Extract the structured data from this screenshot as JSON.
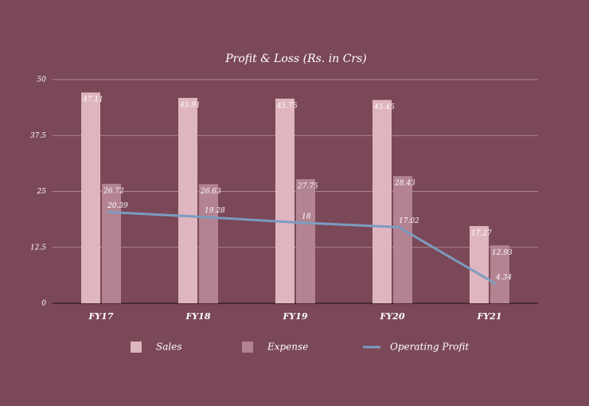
{
  "chart_data": {
    "type": "bar",
    "title": "Profit & Loss (Rs. in Crs)",
    "categories": [
      "FY17",
      "FY18",
      "FY19",
      "FY20",
      "FY21"
    ],
    "series": [
      {
        "name": "Sales",
        "color": "#dfb5bf",
        "values": [
          47.11,
          45.91,
          45.75,
          45.45,
          17.27
        ]
      },
      {
        "name": "Expense",
        "color": "#b38391",
        "values": [
          26.72,
          26.63,
          27.75,
          28.43,
          12.93
        ]
      },
      {
        "name": "Operating Profit",
        "color": "#7c9cc0",
        "type": "line",
        "values": [
          20.39,
          19.28,
          18,
          17.02,
          4.34
        ]
      }
    ],
    "ylim": [
      0,
      50
    ],
    "yticks": [
      0,
      12.5,
      25,
      37.5,
      50
    ],
    "grid": true,
    "legend": "bottom"
  }
}
